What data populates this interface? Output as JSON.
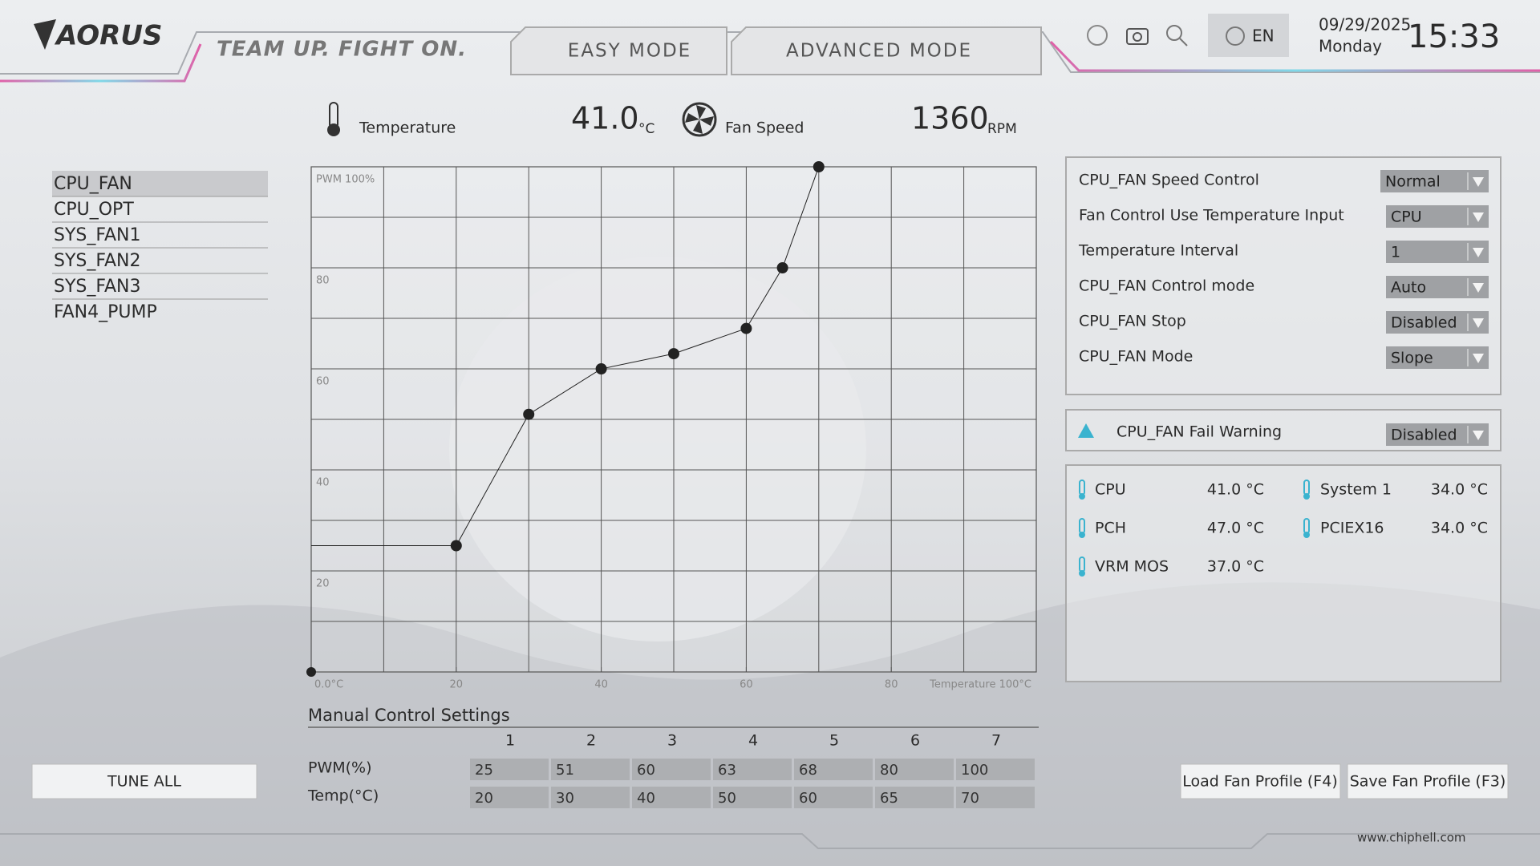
{
  "header": {
    "logo": "AORUS",
    "slogan": "TEAM UP. FIGHT ON.",
    "tabs": [
      "EASY MODE",
      "ADVANCED MODE"
    ],
    "language": "EN",
    "date": "09/29/2025",
    "weekday": "Monday",
    "time": "15:33"
  },
  "status": {
    "temperature": {
      "label": "Temperature",
      "value": "41.0",
      "unit": "°C"
    },
    "fan_speed": {
      "label": "Fan Speed",
      "value": 1360,
      "unit": "RPM"
    }
  },
  "fan_list": {
    "items": [
      "CPU_FAN",
      "CPU_OPT",
      "SYS_FAN1",
      "SYS_FAN2",
      "SYS_FAN3",
      "FAN4_PUMP"
    ],
    "selected": 0
  },
  "fan_curve": {
    "xlim": [
      0,
      100
    ],
    "ylim": [
      0,
      100
    ],
    "xticks": [
      {
        "value": 0,
        "label": "0.0°C"
      },
      20,
      40,
      60,
      80,
      {
        "value": 100,
        "label": "Temperature 100°C"
      }
    ],
    "yticks": [
      {
        "value": 100,
        "label": "PWM 100%"
      },
      80,
      60,
      40,
      20
    ],
    "grid": true,
    "color": "#222222"
  },
  "settings": {
    "rows": [
      {
        "label": "CPU_FAN Speed Control",
        "value": "Normal"
      },
      {
        "label": "Fan Control Use Temperature Input",
        "value": "CPU"
      },
      {
        "label": "Temperature Interval",
        "value": "1"
      },
      {
        "label": "CPU_FAN Control mode",
        "value": "Auto"
      },
      {
        "label": "CPU_FAN Stop",
        "value": "Disabled"
      },
      {
        "label": "CPU_FAN Mode",
        "value": "Slope"
      }
    ]
  },
  "fail_warning": {
    "label": "CPU_FAN Fail Warning",
    "value": "Disabled"
  },
  "temperatures": [
    {
      "label": "CPU",
      "value": "41.0 °C"
    },
    {
      "label": "System 1",
      "value": "34.0 °C"
    },
    {
      "label": "PCH",
      "value": "47.0 °C"
    },
    {
      "label": "PCIEX16",
      "value": "34.0 °C"
    },
    {
      "label": "VRM MOS",
      "value": "37.0 °C"
    }
  ],
  "manual_control": {
    "title": "Manual Control Settings",
    "columns": [
      1,
      2,
      3,
      4,
      5,
      6,
      7
    ],
    "pwm": {
      "label": "PWM(%)",
      "values": [
        25,
        51,
        60,
        63,
        68,
        80,
        100
      ]
    },
    "temp": {
      "label": "Temp(°C)",
      "values": [
        20,
        30,
        40,
        50,
        60,
        65,
        70
      ]
    }
  },
  "buttons": {
    "tune_all": "TUNE ALL",
    "load": "Load Fan Profile (F4)",
    "save": "Save Fan Profile (F3)"
  },
  "watermark": "www.chiphell.com"
}
